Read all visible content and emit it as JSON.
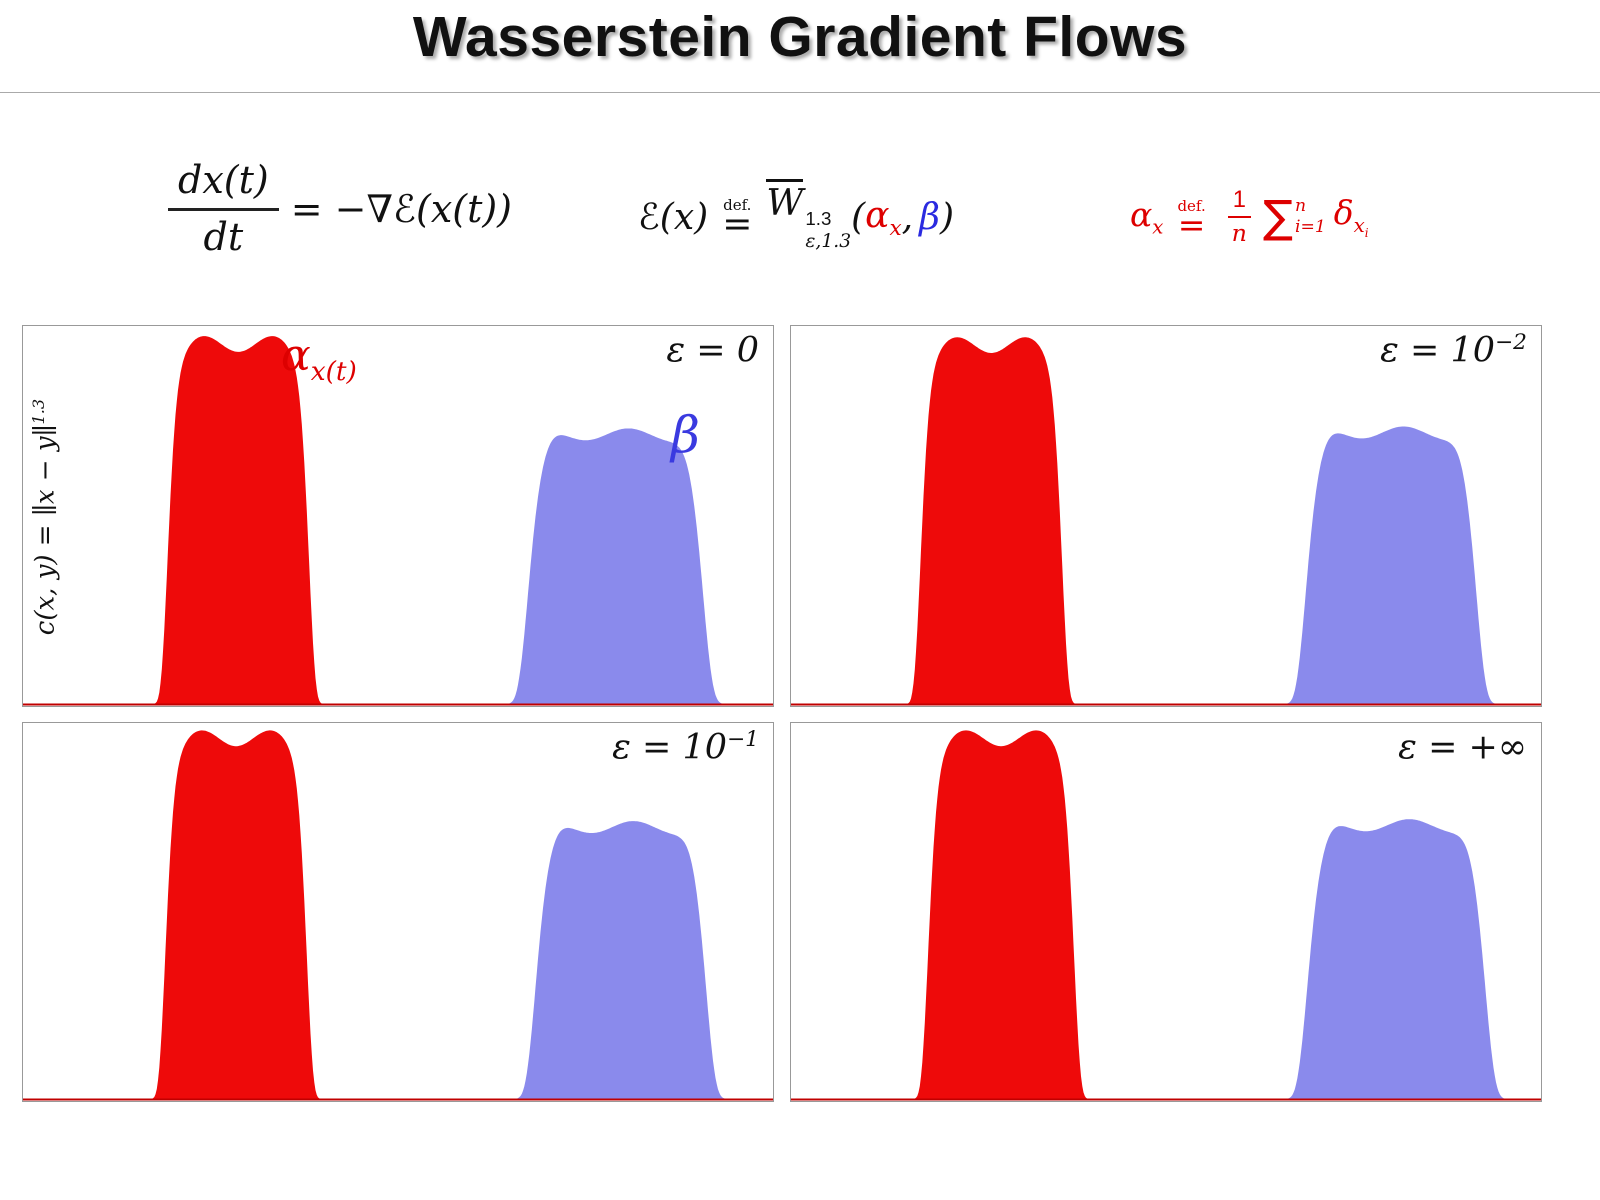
{
  "title": "Wasserstein Gradient Flows",
  "colors": {
    "red_fill": "#ee0a0a",
    "blue_fill": "#8a8aec",
    "baseline": "#c00000",
    "label_red": "#dd0000",
    "label_blue": "#3a3ae0"
  },
  "formulas": {
    "flow": {
      "numerator": "dx(t)",
      "denominator": "dt",
      "rhs": "= −∇ℰ(x(t))"
    },
    "energy": {
      "lhs": "ℰ(x)",
      "def": "def.",
      "equals": "=",
      "w": "W",
      "w_sup": "1.3",
      "w_sub": "ε,1.3",
      "open_paren": "(",
      "alpha": "α",
      "alpha_sub": "x",
      "comma": ",",
      "beta": "β",
      "close_paren": ")"
    },
    "empirical": {
      "alpha": "α",
      "alpha_sub": "x",
      "def": "def.",
      "equals": "=",
      "frac_num": "1",
      "frac_den": "n",
      "sum": "∑",
      "sum_sup": "n",
      "sum_sub": "i=1",
      "delta": "δ",
      "delta_sub": "x",
      "delta_sub_sub": "i"
    }
  },
  "axis_label": {
    "text": "c(x, y) = ∥x − y∥",
    "sup": "1.3"
  },
  "panels": [
    {
      "epsilon_pre": "ε = 0",
      "epsilon_sup": "",
      "alpha_label": "α",
      "alpha_label_sub": "x(t)",
      "beta_label": "β"
    },
    {
      "epsilon_pre": "ε = 10",
      "epsilon_sup": "−2"
    },
    {
      "epsilon_pre": "ε = 10",
      "epsilon_sup": "−1"
    },
    {
      "epsilon_pre": "ε = +∞",
      "epsilon_sup": ""
    }
  ],
  "chart_data": [
    {
      "type": "area",
      "title": "ε = 0",
      "xlabel": "",
      "ylabel": "c(x,y) = ∥x−y∥^1.3",
      "x_range": [
        0,
        1
      ],
      "y_range": [
        0,
        1
      ],
      "grid": false,
      "legend_position": "inline-labels",
      "series": [
        {
          "name": "α_x(t)",
          "color": "red",
          "shape": "smoothed-plateau-density",
          "center": 0.287,
          "width": 0.095,
          "power": 6,
          "height": 0.968
        },
        {
          "name": "β",
          "color": "blue",
          "shape": "smoothed-plateau-density",
          "center": 0.79,
          "width": 0.118,
          "power": 5,
          "height": 0.725
        }
      ]
    },
    {
      "type": "area",
      "title": "ε = 10^−2",
      "x_range": [
        0,
        1
      ],
      "y_range": [
        0,
        1
      ],
      "grid": false,
      "series": [
        {
          "name": "α_x(t)",
          "color": "red",
          "shape": "smoothed-plateau-density",
          "center": 0.267,
          "width": 0.095,
          "power": 6,
          "height": 0.965
        },
        {
          "name": "β",
          "color": "blue",
          "shape": "smoothed-plateau-density",
          "center": 0.8,
          "width": 0.115,
          "power": 5,
          "height": 0.73
        }
      ]
    },
    {
      "type": "area",
      "title": "ε = 10^−1",
      "x_range": [
        0,
        1
      ],
      "y_range": [
        0,
        1
      ],
      "grid": false,
      "series": [
        {
          "name": "α_x(t)",
          "color": "red",
          "shape": "smoothed-plateau-density",
          "center": 0.284,
          "width": 0.095,
          "power": 6,
          "height": 0.975
        },
        {
          "name": "β",
          "color": "blue",
          "shape": "smoothed-plateau-density",
          "center": 0.797,
          "width": 0.115,
          "power": 5,
          "height": 0.735
        }
      ]
    },
    {
      "type": "area",
      "title": "ε = +∞",
      "x_range": [
        0,
        1
      ],
      "y_range": [
        0,
        1
      ],
      "grid": false,
      "series": [
        {
          "name": "α_x(t)",
          "color": "red",
          "shape": "smoothed-plateau-density",
          "center": 0.28,
          "width": 0.098,
          "power": 6,
          "height": 0.975
        },
        {
          "name": "β",
          "color": "blue",
          "shape": "smoothed-plateau-density",
          "center": 0.807,
          "width": 0.12,
          "power": 5,
          "height": 0.74
        }
      ]
    }
  ]
}
